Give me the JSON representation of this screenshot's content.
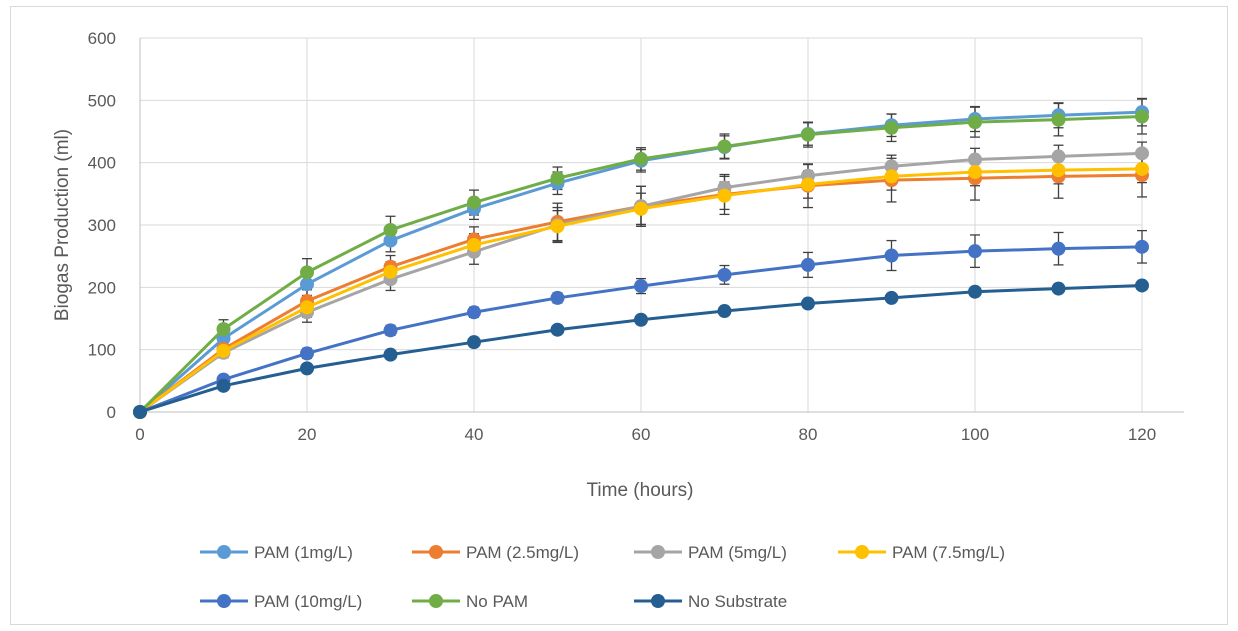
{
  "chart_data": {
    "type": "line",
    "title": "",
    "xlabel": "Time (hours)",
    "ylabel": "Biogas Production (ml)",
    "xlim": [
      0,
      120
    ],
    "ylim": [
      0,
      600
    ],
    "xticks": [
      0,
      20,
      40,
      60,
      80,
      100,
      120
    ],
    "yticks": [
      0,
      100,
      200,
      300,
      400,
      500,
      600
    ],
    "grid": true,
    "legend_position": "bottom",
    "x": [
      0,
      10,
      20,
      30,
      40,
      50,
      60,
      70,
      80,
      90,
      100,
      110,
      120
    ],
    "series": [
      {
        "name": "PAM (1mg/L)",
        "color": "#5B9BD5",
        "values": [
          0,
          118,
          205,
          275,
          326,
          367,
          403,
          425,
          446,
          460,
          470,
          476,
          481
        ],
        "errors": [
          0,
          10,
          18,
          18,
          17,
          18,
          18,
          18,
          18,
          18,
          20,
          20,
          22
        ]
      },
      {
        "name": "PAM (2.5mg/L)",
        "color": "#ED7D31",
        "values": [
          0,
          101,
          178,
          233,
          277,
          305,
          330,
          349,
          363,
          372,
          375,
          378,
          380
        ],
        "errors": [
          0,
          8,
          18,
          18,
          20,
          30,
          32,
          32,
          35,
          35,
          35,
          35,
          35
        ]
      },
      {
        "name": "PAM (5mg/L)",
        "color": "#A5A5A5",
        "values": [
          0,
          95,
          160,
          213,
          257,
          300,
          330,
          360,
          379,
          394,
          405,
          410,
          415
        ],
        "errors": [
          0,
          8,
          16,
          18,
          20,
          28,
          32,
          18,
          18,
          18,
          18,
          18,
          18
        ]
      },
      {
        "name": "PAM (7.5mg/L)",
        "color": "#FFC000",
        "values": [
          0,
          98,
          168,
          225,
          268,
          298,
          326,
          347,
          365,
          378,
          385,
          388,
          390
        ],
        "errors": [
          0,
          8,
          16,
          16,
          18,
          25,
          25,
          22,
          22,
          22,
          22,
          22,
          22
        ]
      },
      {
        "name": "PAM (10mg/L)",
        "color": "#4472C4",
        "values": [
          0,
          52,
          94,
          131,
          160,
          183,
          202,
          220,
          236,
          251,
          258,
          262,
          265
        ],
        "errors": [
          0,
          5,
          8,
          8,
          8,
          8,
          12,
          15,
          20,
          24,
          26,
          26,
          26
        ]
      },
      {
        "name": "No PAM",
        "color": "#70AD47",
        "values": [
          0,
          133,
          224,
          292,
          336,
          375,
          406,
          426,
          445,
          456,
          465,
          469,
          474
        ],
        "errors": [
          0,
          15,
          22,
          22,
          20,
          18,
          18,
          20,
          20,
          22,
          24,
          26,
          28
        ]
      },
      {
        "name": "No Substrate",
        "color": "#255E91",
        "values": [
          0,
          42,
          70,
          92,
          112,
          132,
          148,
          162,
          174,
          183,
          193,
          198,
          203
        ],
        "errors": [
          0,
          0,
          0,
          0,
          0,
          0,
          0,
          0,
          0,
          0,
          0,
          0,
          0
        ]
      }
    ]
  }
}
